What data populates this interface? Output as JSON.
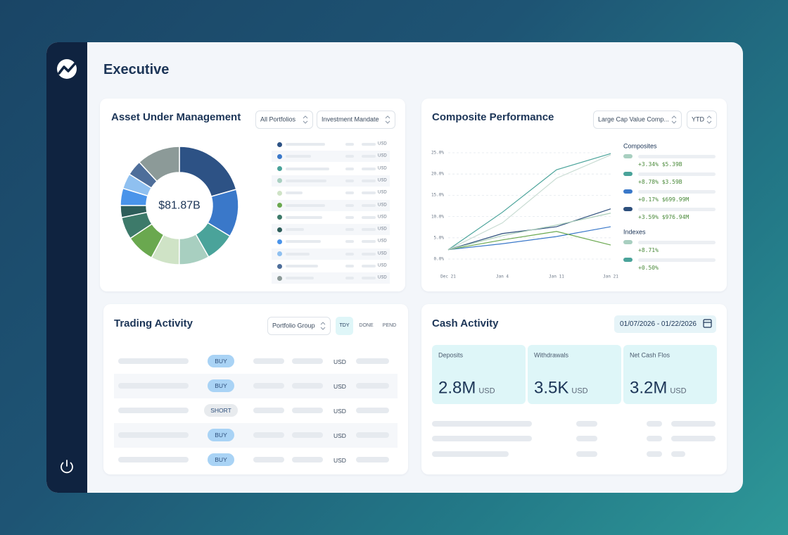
{
  "header": {
    "title": "Executive"
  },
  "aum": {
    "title": "Asset Under Management",
    "filters": [
      "All Portfolios",
      "Investment Mandate"
    ],
    "currencies": [
      "USD",
      "USD",
      "USD",
      "USD",
      "USD",
      "USD",
      "USD",
      "USD",
      "USD",
      "USD",
      "USD",
      "USD"
    ]
  },
  "chart_data": [
    {
      "type": "donut",
      "values": [
        20.6,
        13.1,
        8.1,
        8.3,
        7.8,
        7.8,
        6.1,
        3.3,
        4.7,
        4.2,
        4.2,
        11.9
      ],
      "colors": [
        "#2d5285",
        "#3a78c9",
        "#4aa39a",
        "#a8cfc0",
        "#cfe3c6",
        "#6aa84f",
        "#3d7a6a",
        "#2e5e5a",
        "#4a94ea",
        "#8fc0f0",
        "#4e6e9a",
        "#8c9a98"
      ],
      "center_label": "$81.87B"
    },
    {
      "type": "line",
      "categories": [
        "Dec 21",
        "Jan 4",
        "Jan 11",
        "Jan 21"
      ],
      "ylim": [
        0,
        25
      ],
      "yticks": [
        {
          "value": 0,
          "label": "0.0%"
        },
        {
          "value": 5,
          "label": "5.0%"
        },
        {
          "value": 10,
          "label": "10.0%"
        },
        {
          "value": 15,
          "label": "15.0%"
        },
        {
          "value": 20,
          "label": "20.0%"
        },
        {
          "value": 25,
          "label": "25.0%"
        }
      ],
      "grid": true,
      "series": [
        {
          "color": "#4aa39a",
          "values": [
            2.2,
            11,
            21,
            24.8
          ]
        },
        {
          "color": "#c9dcd3",
          "values": [
            2.2,
            8.5,
            19,
            24.5
          ]
        },
        {
          "color": "#3a78c9",
          "values": [
            2.2,
            3.6,
            5.3,
            7.6
          ]
        },
        {
          "color": "#2d4f7c",
          "values": [
            2.2,
            6,
            7.6,
            11.8
          ]
        },
        {
          "color": "#6aa84f",
          "values": [
            2.2,
            4.5,
            6.5,
            3.3
          ]
        },
        {
          "color": "#a9cdb8",
          "values": [
            2.2,
            5.5,
            8,
            10.8
          ]
        }
      ]
    }
  ],
  "performance": {
    "title": "Composite Performance",
    "filters": [
      "Large Cap Value Comp...",
      "YTD"
    ],
    "composites_heading": "Composites",
    "composites": [
      {
        "color": "#a8cfc0",
        "label": "+3.34% $5.39B"
      },
      {
        "color": "#4aa39a",
        "label": "+8.78% $3.59B"
      },
      {
        "color": "#3a78c9",
        "label": "+0.17% $699.99M"
      },
      {
        "color": "#2d4f7c",
        "label": "+3.59% $976.94M"
      }
    ],
    "indexes_heading": "Indexes",
    "indexes": [
      {
        "color": "#a8cfc0",
        "label": "+8.71%"
      },
      {
        "color": "#4aa39a",
        "label": "+0.50%"
      }
    ]
  },
  "trading": {
    "title": "Trading Activity",
    "filter": "Portfolio Group",
    "tabs": [
      "TDY",
      "DONE",
      "PEND"
    ],
    "rows": [
      {
        "side": "BUY",
        "badge_color": "#a9d3f5",
        "currency": "USD"
      },
      {
        "side": "BUY",
        "badge_color": "#a9d3f5",
        "currency": "USD"
      },
      {
        "side": "SHORT",
        "badge_color": "#e8ebee",
        "currency": "USD"
      },
      {
        "side": "BUY",
        "badge_color": "#a9d3f5",
        "currency": "USD"
      },
      {
        "side": "BUY",
        "badge_color": "#a9d3f5",
        "currency": "USD"
      }
    ]
  },
  "cash": {
    "title": "Cash Activity",
    "date_range": "01/07/2026 - 01/22/2026",
    "cards": [
      {
        "label": "Deposits",
        "amount": "2.8M",
        "currency": "USD"
      },
      {
        "label": "Withdrawals",
        "amount": "3.5K",
        "currency": "USD"
      },
      {
        "label": "Net Cash Flos",
        "amount": "3.2M",
        "currency": "USD"
      }
    ]
  }
}
